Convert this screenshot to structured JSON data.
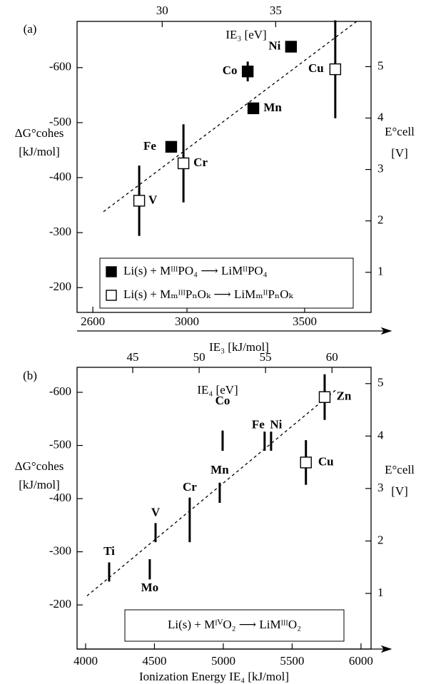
{
  "chart_data": [
    {
      "type": "scatter",
      "label": "(a)",
      "xlabel": "IE₃ [kJ/mol]",
      "x2label": "IE₃ [eV]",
      "ylabel": [
        "ΔG°cohes",
        "[kJ/mol]"
      ],
      "y2label": [
        "E°cell",
        "[V]"
      ],
      "xlim": [
        2533,
        3782
      ],
      "xticks": [
        2600,
        3000,
        3500
      ],
      "x2lim": [
        26.25,
        39.2
      ],
      "x2ticks": [
        30,
        35
      ],
      "ylim": [
        -155,
        -684
      ],
      "yticks": [
        -600,
        -500,
        -400,
        -300,
        -200
      ],
      "y2lim": [
        0.22,
        5.88
      ],
      "y2ticks": [
        1,
        2,
        3,
        4,
        5
      ],
      "trend": {
        "x": [
          2645,
          3721
        ],
        "y": [
          -338,
          -684
        ]
      },
      "label_color": "#7d3c98",
      "series": [
        {
          "name": "Li(s) + MᴵᴵᴵPO₄ ⟶ LiMᴵᴵPO₄",
          "marker": "filled-square",
          "color": "#000000",
          "labels": [
            "Fe",
            "Co",
            "Mn",
            "Ni"
          ],
          "x": [
            2933,
            3258,
            3282,
            3442
          ],
          "values": [
            -456,
            -593,
            -526,
            -638
          ],
          "errors": [
            null,
            18,
            null,
            null
          ]
        },
        {
          "name": "Li(s) + MₘᴵᴵᴵPₙOₖ ⟶ LiMₘᴵᴵPₙOₖ",
          "marker": "open-square",
          "color": "#000000",
          "labels": [
            "V",
            "Cr",
            "Cu"
          ],
          "x": [
            2797,
            2985,
            3630
          ],
          "values": [
            -358,
            -426,
            -597
          ],
          "errors": [
            64,
            71,
            89
          ]
        }
      ]
    },
    {
      "type": "scatter",
      "label": "(b)",
      "xlabel": "Ionization Energy IE₄ [kJ/mol]",
      "x2label": "IE₄ [eV]",
      "ylabel": [
        "ΔG°cohes",
        "[kJ/mol]"
      ],
      "y2label": [
        "E°cell",
        "[V]"
      ],
      "xlim": [
        3938,
        6073
      ],
      "xticks": [
        4000,
        4500,
        5000,
        5500,
        6000
      ],
      "x2lim": [
        40.81,
        62.94
      ],
      "x2ticks": [
        45,
        50,
        55,
        60
      ],
      "ylim": [
        -117,
        -647
      ],
      "yticks": [
        -600,
        -500,
        -400,
        -300,
        -200
      ],
      "y2lim": [
        -0.06,
        5.31
      ],
      "y2ticks": [
        1,
        2,
        3,
        4,
        5
      ],
      "trend": {
        "x": [
          4010,
          5829
        ],
        "y": [
          -217,
          -607
        ]
      },
      "label_color": "#7d3c98",
      "legend": "Li(s) + MᴵⱽO₂ ⟶ LiMᴵᴵᴵO₂",
      "series": [
        {
          "marker": "none",
          "color": "#000000",
          "labels": [
            "Ti",
            "Mo",
            "V",
            "Cr",
            "Mn",
            "Co",
            "Fe",
            "Ni"
          ],
          "x": [
            4171,
            4466,
            4508,
            4756,
            4974,
            4995,
            5300,
            5347
          ],
          "values": [
            -262,
            -267,
            -336,
            -360,
            -411,
            -509,
            -508,
            -508
          ],
          "errors": [
            18,
            19,
            18,
            42,
            19,
            19,
            18,
            18
          ]
        },
        {
          "marker": "open-square",
          "color": "#000000",
          "labels": [
            "Cu",
            "Zn"
          ],
          "x": [
            5600,
            5736
          ],
          "values": [
            -468,
            -591
          ],
          "errors": [
            42,
            43
          ]
        }
      ]
    }
  ]
}
